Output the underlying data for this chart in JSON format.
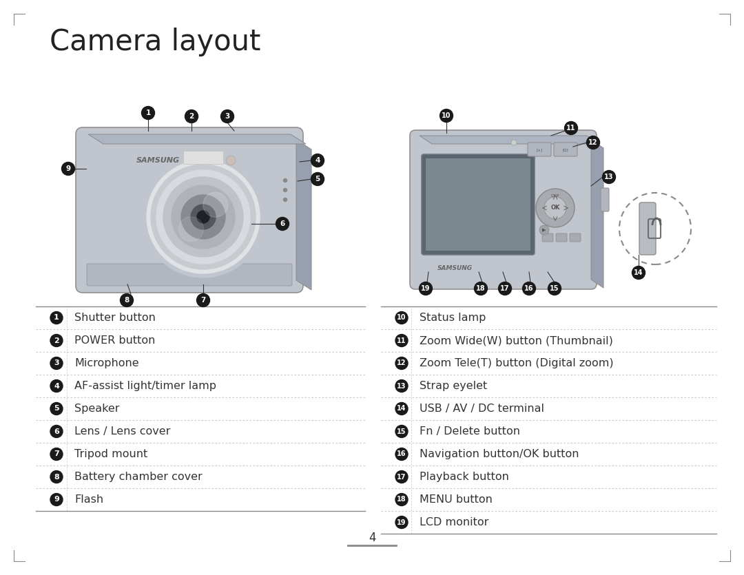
{
  "title": "Camera layout",
  "bg_color": "#ffffff",
  "title_fontsize": 30,
  "left_labels": [
    [
      "1",
      "Shutter button"
    ],
    [
      "2",
      "POWER button"
    ],
    [
      "3",
      "Microphone"
    ],
    [
      "4",
      "AF-assist light/timer lamp"
    ],
    [
      "5",
      "Speaker"
    ],
    [
      "6",
      "Lens / Lens cover"
    ],
    [
      "7",
      "Tripod mount"
    ],
    [
      "8",
      "Battery chamber cover"
    ],
    [
      "9",
      "Flash"
    ]
  ],
  "right_labels": [
    [
      "10",
      "Status lamp"
    ],
    [
      "11",
      "Zoom Wide(W) button (Thumbnail)"
    ],
    [
      "12",
      "Zoom Tele(T) button (Digital zoom)"
    ],
    [
      "13",
      "Strap eyelet"
    ],
    [
      "14",
      "USB / AV / DC terminal"
    ],
    [
      "15",
      "Fn / Delete button"
    ],
    [
      "16",
      "Navigation button/OK button"
    ],
    [
      "17",
      "Playback button"
    ],
    [
      "18",
      "MENU button"
    ],
    [
      "19",
      "LCD monitor"
    ]
  ],
  "page_number": "4",
  "separator_color": "#888888",
  "dot_separator_color": "#bbbbbb",
  "label_bg_color": "#1a1a1a",
  "label_text_color": "#ffffff",
  "text_color": "#333333",
  "cam_body_color": "#c0c5ce",
  "cam_body_edge": "#909090",
  "cam_side_color": "#989fae",
  "cam_top_color": "#adb4c2"
}
